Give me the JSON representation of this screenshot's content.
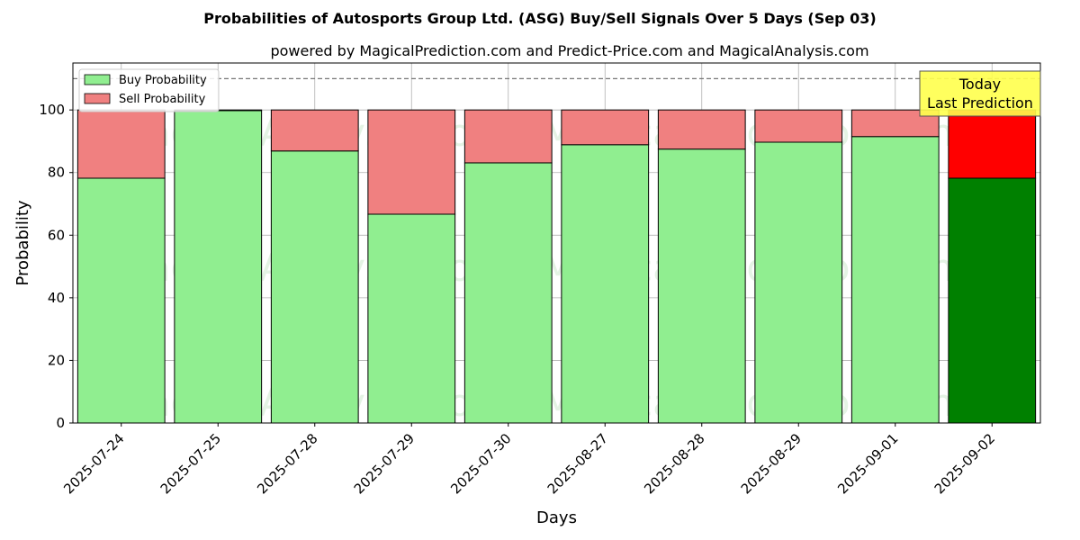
{
  "chart_data": {
    "type": "bar",
    "stacked": true,
    "title": "Probabilities of Autosports Group Ltd. (ASG) Buy/Sell Signals Over 5 Days (Sep 03)",
    "subtitle": "powered by MagicalPrediction.com and Predict-Price.com and MagicalAnalysis.com",
    "xlabel": "Days",
    "ylabel": "Probability",
    "ylim": [
      0,
      115
    ],
    "yticks": [
      0,
      20,
      40,
      60,
      80,
      100
    ],
    "grid": true,
    "reference_line": 110,
    "legend_position": "top-left",
    "categories": [
      "2025-07-24",
      "2025-07-25",
      "2025-07-28",
      "2025-07-29",
      "2025-07-30",
      "2025-08-27",
      "2025-08-28",
      "2025-08-29",
      "2025-09-01",
      "2025-09-02"
    ],
    "series": [
      {
        "name": "Buy Probability",
        "color": "#90ee90",
        "values": [
          78.2,
          99.8,
          86.9,
          66.7,
          83.1,
          88.9,
          87.5,
          89.7,
          91.5,
          78.2
        ]
      },
      {
        "name": "Sell Probability",
        "color": "#f08080",
        "values": [
          21.8,
          0.2,
          13.1,
          33.3,
          16.9,
          11.1,
          12.5,
          10.3,
          8.5,
          21.8
        ]
      }
    ],
    "highlight": {
      "index": 9,
      "buy_color": "#008000",
      "sell_color": "#ff0000",
      "annotation": [
        "Today",
        "Last Prediction"
      ],
      "annotation_color": "#ffff4d"
    },
    "watermarks": [
      "MagicalAnalysis.com",
      "MagicalPrediction.com"
    ]
  }
}
